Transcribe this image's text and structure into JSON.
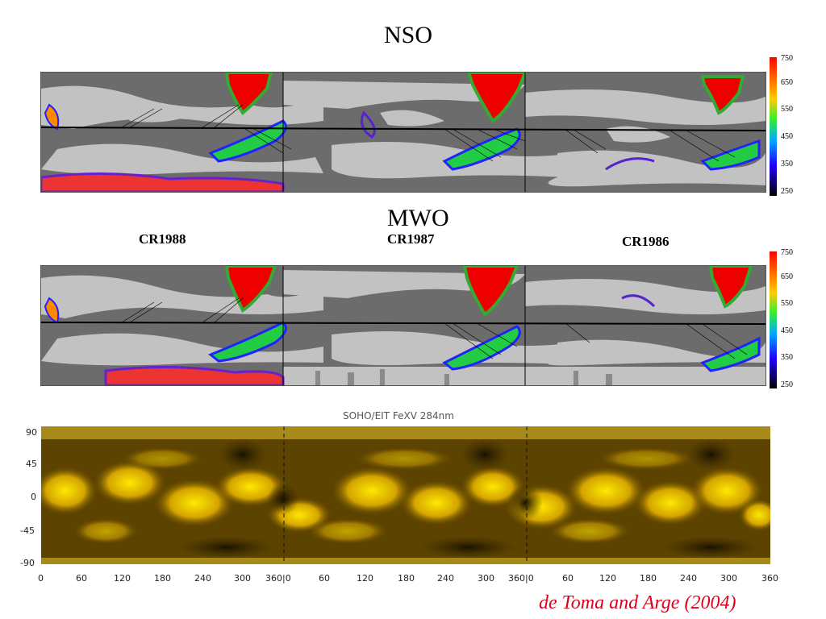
{
  "nso_panel": {
    "title": "NSO",
    "colorbar_ticks": [
      "750",
      "650",
      "550",
      "450",
      "350",
      "250"
    ]
  },
  "mwo_panel": {
    "title": "MWO",
    "rotations": [
      "CR1988",
      "CR1987",
      "CR1986"
    ],
    "colorbar_ticks": [
      "750",
      "650",
      "550",
      "450",
      "350",
      "250"
    ]
  },
  "eit_panel": {
    "title": "SOHO/EIT FeXV 284nm",
    "y_ticks": [
      "90",
      "45",
      "0",
      "-45",
      "-90"
    ],
    "x_ticks": [
      "0",
      "60",
      "120",
      "180",
      "240",
      "300",
      "360|0",
      "60",
      "120",
      "180",
      "240",
      "300",
      "360|0",
      "60",
      "120",
      "180",
      "240",
      "300",
      "360"
    ],
    "image_tone": "#c8a000"
  },
  "credit": "de Toma and Arge (2004)",
  "colors": {
    "dark_region": "#707070",
    "light_region": "#c0c0c0",
    "credit_red": "#e0001c",
    "eit_base": "#7a5c00"
  }
}
